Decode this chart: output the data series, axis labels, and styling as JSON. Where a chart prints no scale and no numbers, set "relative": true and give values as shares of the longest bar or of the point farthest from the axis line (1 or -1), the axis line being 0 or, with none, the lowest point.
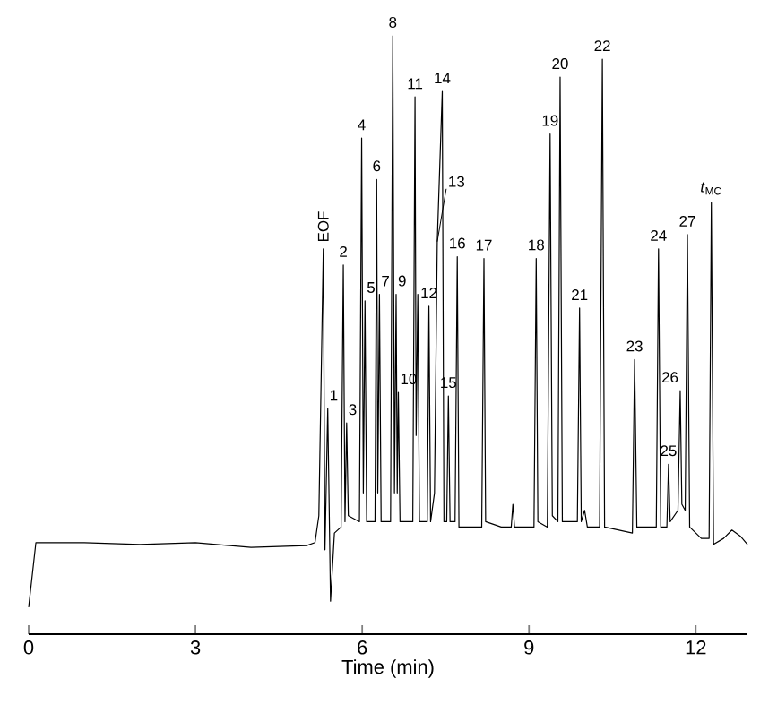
{
  "chart_data": {
    "type": "line",
    "relative": true,
    "xlabel": "Time (min)",
    "xlim": [
      0,
      12.93
    ],
    "xticks": [
      0,
      3,
      6,
      9,
      12
    ],
    "color": "#000000",
    "marker": "none",
    "x": [
      0,
      0.13,
      1,
      2,
      3,
      4,
      5,
      5.15,
      5.22,
      5.3,
      5.33,
      5.38,
      5.43,
      5.5,
      5.62,
      5.66,
      5.69,
      5.72,
      5.75,
      5.95,
      5.99,
      6.02,
      6.05,
      6.08,
      6.23,
      6.26,
      6.28,
      6.31,
      6.34,
      6.51,
      6.55,
      6.58,
      6.61,
      6.63,
      6.65,
      6.68,
      6.91,
      6.95,
      6.97,
      7.0,
      7.03,
      7.17,
      7.2,
      7.23,
      7.3,
      7.35,
      7.44,
      7.47,
      7.52,
      7.55,
      7.58,
      7.67,
      7.71,
      7.74,
      8.15,
      8.19,
      8.22,
      8.5,
      8.68,
      8.71,
      8.74,
      9.09,
      9.13,
      9.16,
      9.33,
      9.38,
      9.42,
      9.52,
      9.56,
      9.6,
      9.87,
      9.91,
      9.94,
      10.0,
      10.05,
      10.27,
      10.32,
      10.36,
      10.86,
      10.9,
      10.94,
      11.29,
      11.33,
      11.37,
      11.48,
      11.51,
      11.54,
      11.68,
      11.72,
      11.75,
      11.81,
      11.85,
      11.89,
      12.1,
      12.24,
      12.28,
      12.32,
      12.5,
      12.65,
      12.8,
      12.93
    ],
    "values": [
      0.045,
      0.153,
      0.153,
      0.15,
      0.153,
      0.145,
      0.148,
      0.153,
      0.198,
      0.644,
      0.141,
      0.377,
      0.055,
      0.169,
      0.179,
      0.617,
      0.188,
      0.353,
      0.198,
      0.188,
      0.829,
      0.236,
      0.557,
      0.188,
      0.188,
      0.76,
      0.236,
      0.568,
      0.188,
      0.188,
      1,
      0.236,
      0.568,
      0.236,
      0.404,
      0.188,
      0.188,
      0.898,
      0.332,
      0.568,
      0.188,
      0.188,
      0.548,
      0.188,
      0.236,
      0.656,
      0.907,
      0.188,
      0.188,
      0.398,
      0.188,
      0.188,
      0.631,
      0.179,
      0.179,
      0.628,
      0.188,
      0.179,
      0.179,
      0.217,
      0.179,
      0.179,
      0.628,
      0.188,
      0.179,
      0.836,
      0.198,
      0.188,
      0.931,
      0.188,
      0.188,
      0.545,
      0.188,
      0.207,
      0.179,
      0.179,
      0.961,
      0.179,
      0.169,
      0.459,
      0.179,
      0.179,
      0.644,
      0.179,
      0.179,
      0.284,
      0.188,
      0.207,
      0.407,
      0.217,
      0.207,
      0.668,
      0.179,
      0.16,
      0.16,
      0.721,
      0.15,
      0.16,
      0.174,
      0.164,
      0.15
    ],
    "annotations": [
      {
        "text": "EOF",
        "x": 5.3,
        "y": 0.644
      },
      {
        "text": "1",
        "x": 5.38,
        "y": 0.377
      },
      {
        "text": "2",
        "x": 5.66,
        "y": 0.617
      },
      {
        "text": "3",
        "x": 5.72,
        "y": 0.353
      },
      {
        "text": "4",
        "x": 5.99,
        "y": 0.829
      },
      {
        "text": "5",
        "x": 6.05,
        "y": 0.557
      },
      {
        "text": "6",
        "x": 6.26,
        "y": 0.76
      },
      {
        "text": "7",
        "x": 6.31,
        "y": 0.568
      },
      {
        "text": "8",
        "x": 6.55,
        "y": 1
      },
      {
        "text": "9",
        "x": 6.61,
        "y": 0.568
      },
      {
        "text": "10",
        "x": 6.65,
        "y": 0.404
      },
      {
        "text": "11",
        "x": 6.95,
        "y": 0.898
      },
      {
        "text": "12",
        "x": 7.2,
        "y": 0.548
      },
      {
        "text": "13",
        "x": 7.35,
        "y": 0.656
      },
      {
        "text": "14",
        "x": 7.44,
        "y": 0.907
      },
      {
        "text": "15",
        "x": 7.55,
        "y": 0.398
      },
      {
        "text": "16",
        "x": 7.71,
        "y": 0.631
      },
      {
        "text": "17",
        "x": 8.19,
        "y": 0.628
      },
      {
        "text": "18",
        "x": 9.13,
        "y": 0.628
      },
      {
        "text": "19",
        "x": 9.38,
        "y": 0.836
      },
      {
        "text": "20",
        "x": 9.56,
        "y": 0.931
      },
      {
        "text": "21",
        "x": 9.91,
        "y": 0.545
      },
      {
        "text": "22",
        "x": 10.32,
        "y": 0.961
      },
      {
        "text": "23",
        "x": 10.9,
        "y": 0.459
      },
      {
        "text": "24",
        "x": 11.33,
        "y": 0.644
      },
      {
        "text": "25",
        "x": 11.51,
        "y": 0.284
      },
      {
        "text": "26",
        "x": 11.72,
        "y": 0.407
      },
      {
        "text": "27",
        "x": 11.85,
        "y": 0.668
      },
      {
        "text": "*t*$_{MC}$",
        "x": 12.28,
        "y": 0.721
      }
    ]
  }
}
